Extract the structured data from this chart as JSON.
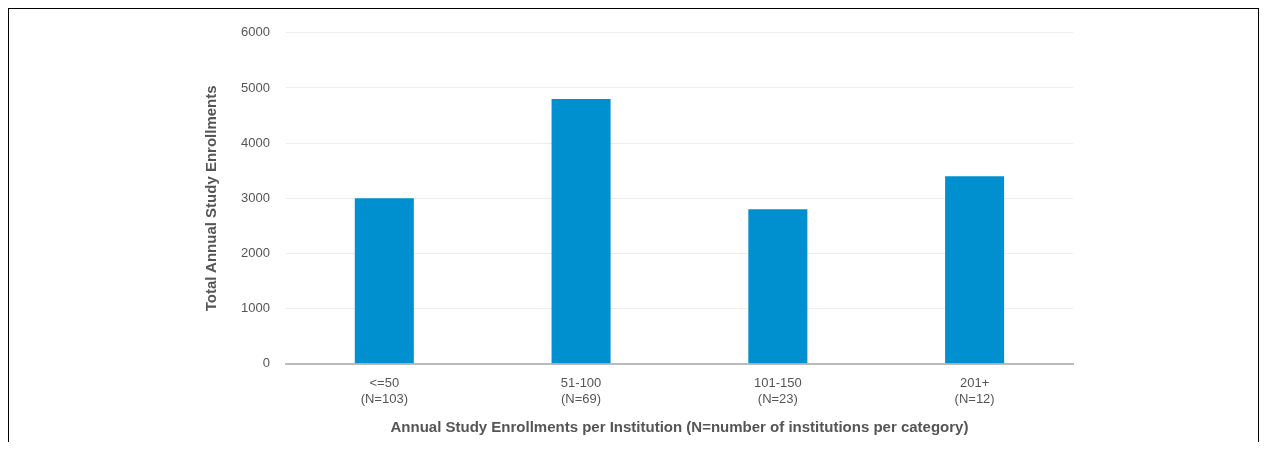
{
  "chart_data": {
    "type": "bar",
    "xlabel": "Annual Study Enrollments per Institution (N=number of institutions per category)",
    "ylabel": "Total Annual Study Enrollments",
    "categories": [
      "<=50\n(N=103)",
      "51-100\n(N=69)",
      "101-150\n(N=23)",
      "201+\n(N=12)"
    ],
    "values": [
      3000,
      4800,
      2800,
      3400
    ],
    "color": "#0090cf",
    "ylim": [
      0,
      6000
    ],
    "yticks": [
      0,
      1000,
      2000,
      3000,
      4000,
      5000,
      6000
    ],
    "grid": "y",
    "legend": false
  }
}
